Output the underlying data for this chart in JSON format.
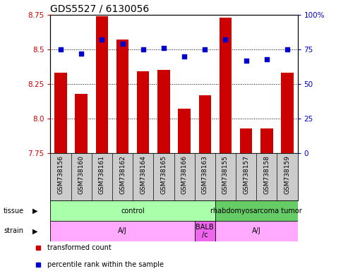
{
  "title": "GDS5527 / 6130056",
  "samples": [
    "GSM738156",
    "GSM738160",
    "GSM738161",
    "GSM738162",
    "GSM738164",
    "GSM738165",
    "GSM738166",
    "GSM738163",
    "GSM738155",
    "GSM738157",
    "GSM738158",
    "GSM738159"
  ],
  "bar_values": [
    8.33,
    8.18,
    8.74,
    8.57,
    8.34,
    8.35,
    8.07,
    8.17,
    8.73,
    7.93,
    7.93,
    8.33
  ],
  "dot_values": [
    75,
    72,
    82,
    79,
    75,
    76,
    70,
    75,
    82,
    67,
    68,
    75
  ],
  "ylim_left": [
    7.75,
    8.75
  ],
  "ylim_right": [
    0,
    100
  ],
  "yticks_left": [
    7.75,
    8.0,
    8.25,
    8.5,
    8.75
  ],
  "yticks_right": [
    0,
    25,
    50,
    75,
    100
  ],
  "bar_color": "#cc0000",
  "dot_color": "#0000cc",
  "bar_bottom": 7.75,
  "tissue_labels": [
    {
      "text": "control",
      "start": 0,
      "end": 8,
      "color": "#aaffaa"
    },
    {
      "text": "rhabdomyosarcoma tumor",
      "start": 8,
      "end": 12,
      "color": "#66cc66"
    }
  ],
  "strain_labels": [
    {
      "text": "A/J",
      "start": 0,
      "end": 7,
      "color": "#ffaaff"
    },
    {
      "text": "BALB\n/c",
      "start": 7,
      "end": 8,
      "color": "#ee66ee"
    },
    {
      "text": "A/J",
      "start": 8,
      "end": 12,
      "color": "#ffaaff"
    }
  ],
  "legend_items": [
    {
      "color": "#cc0000",
      "label": "transformed count"
    },
    {
      "color": "#0000cc",
      "label": "percentile rank within the sample"
    }
  ],
  "xtick_bg_color": "#cccccc",
  "background_color": "#ffffff",
  "title_fontsize": 10,
  "tick_fontsize": 7.5,
  "label_fontsize": 7.5
}
